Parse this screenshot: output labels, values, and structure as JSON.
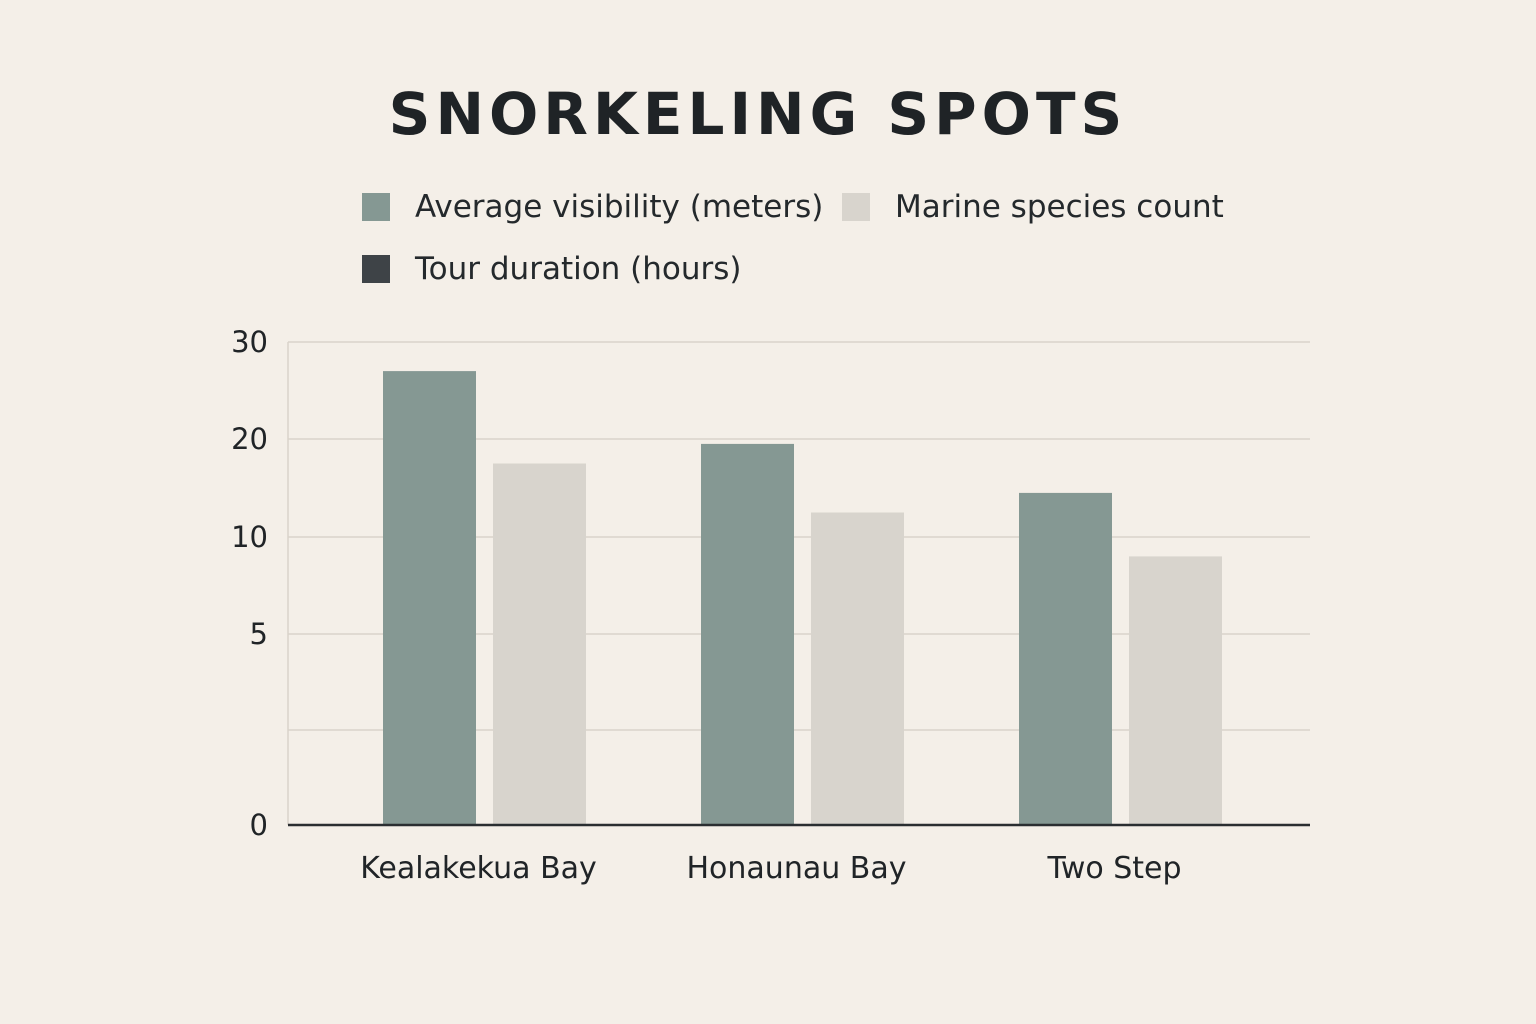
{
  "title": "SNORKELING SPOTS",
  "legend": [
    {
      "label": "Average visibility (meters)",
      "color": "#859893"
    },
    {
      "label": "Marine species count",
      "color": "#d8d4cd"
    },
    {
      "label": "Tour duration (hours)",
      "color": "#3e4347"
    }
  ],
  "chart_data": {
    "type": "bar",
    "categories": [
      "Kealakekua Bay",
      "Honaunau Bay",
      "Two Step"
    ],
    "series": [
      {
        "name": "Average visibility (meters)",
        "values": [
          27,
          19.5,
          14.5
        ],
        "color": "#859893"
      },
      {
        "name": "Marine species count",
        "values": [
          17.5,
          12.5,
          9
        ],
        "color": "#d8d4cd"
      },
      {
        "name": "Tour duration (hours)",
        "values": [
          null,
          null,
          null
        ],
        "color": "#3e4347"
      }
    ],
    "y_tick_labels": [
      "0",
      "",
      "5",
      "10",
      "20",
      "30"
    ],
    "grid": true,
    "legend_position": "top"
  }
}
